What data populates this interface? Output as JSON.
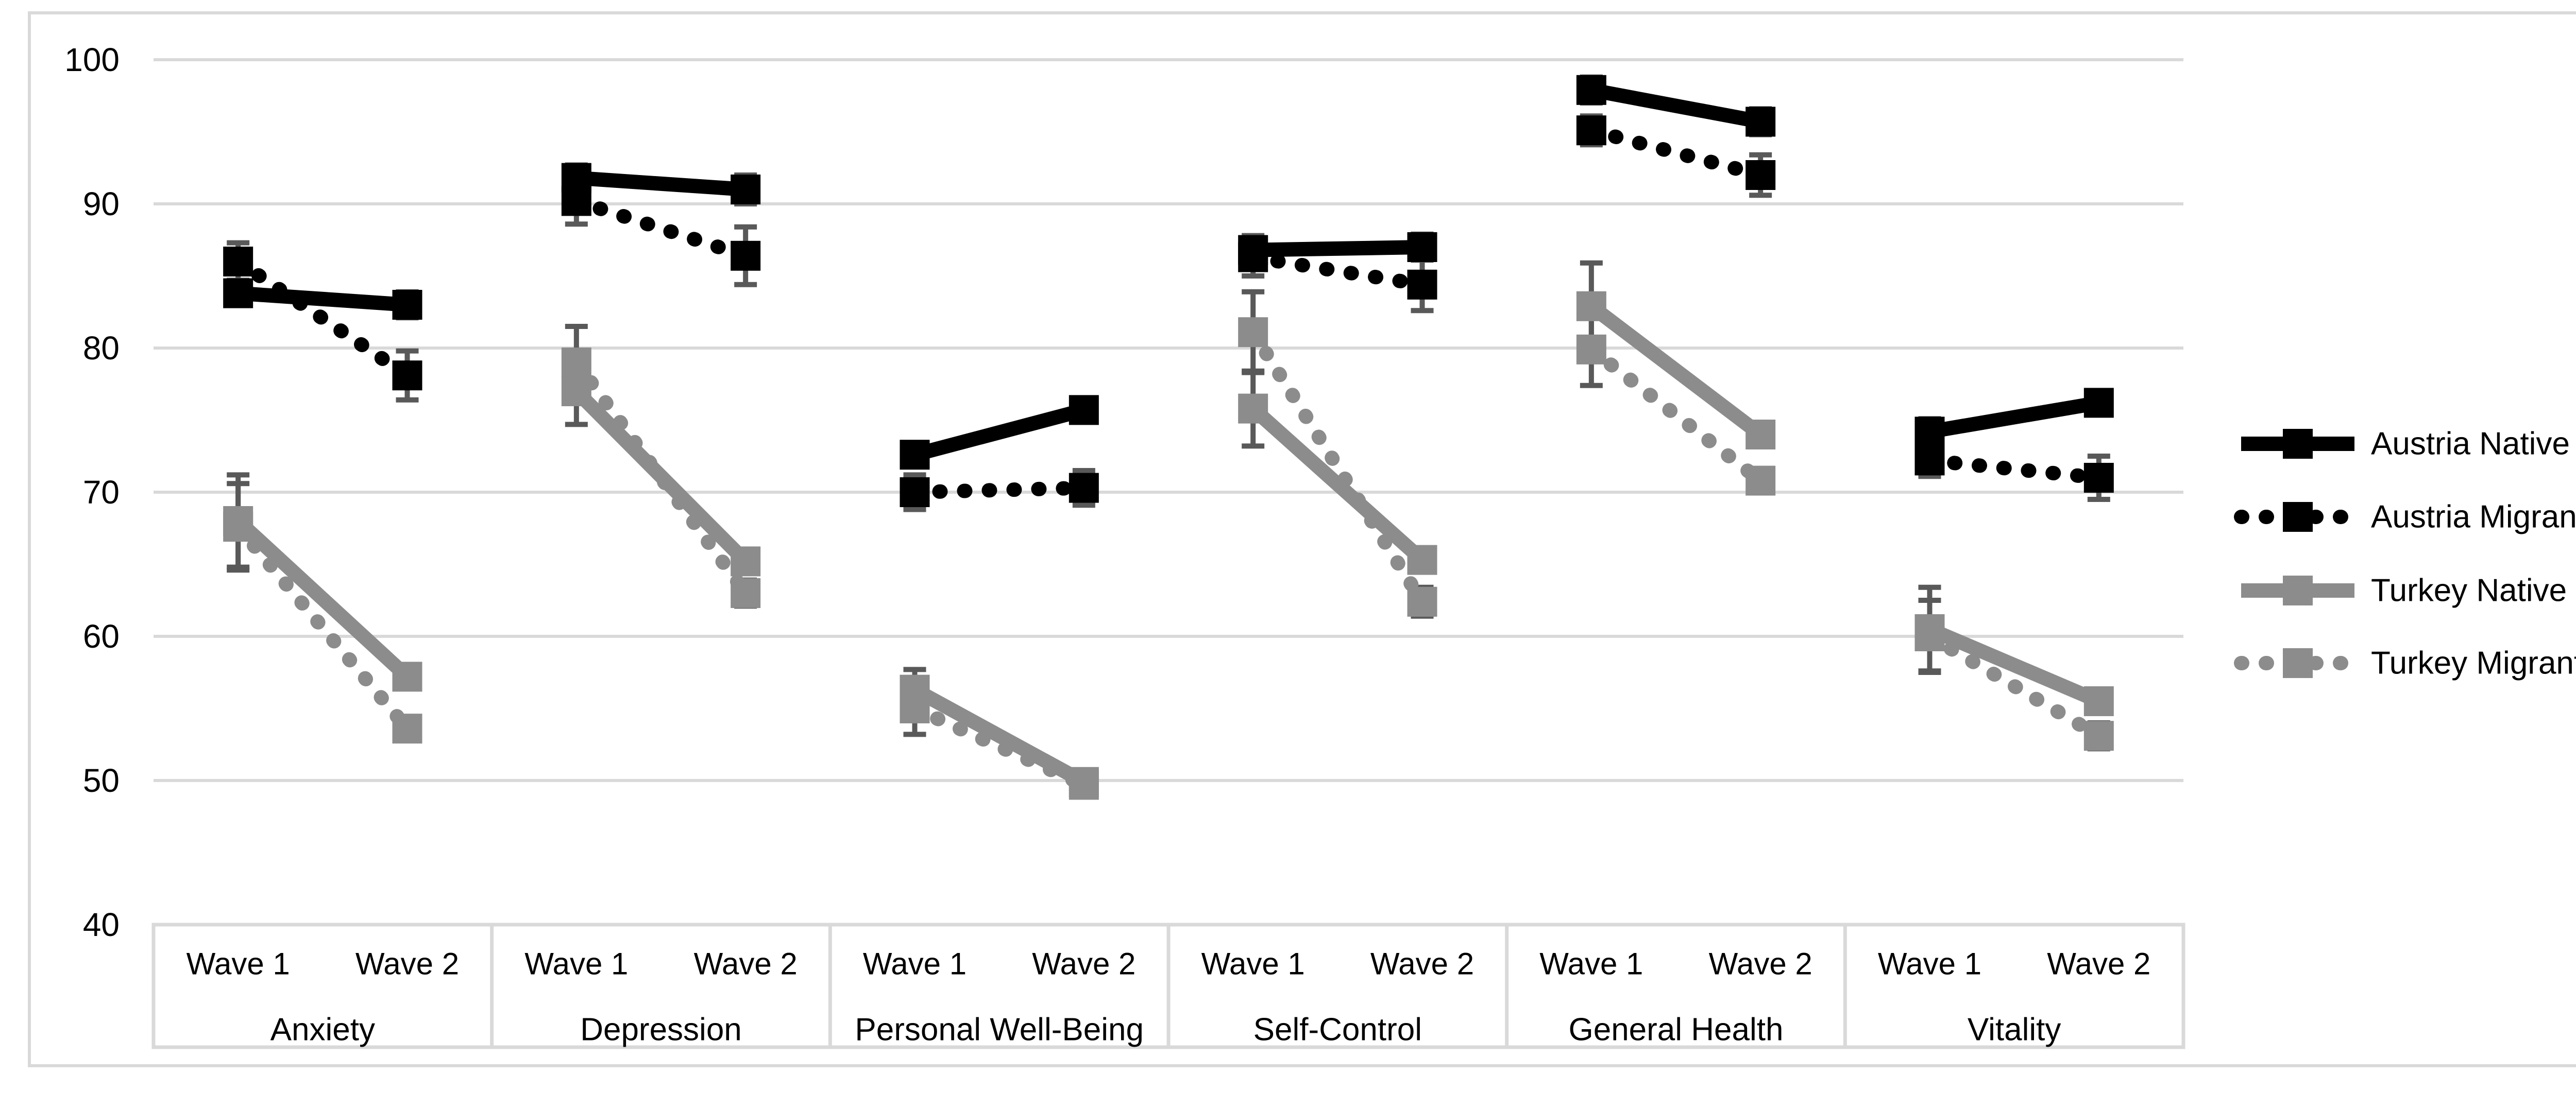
{
  "chart_data": {
    "type": "line",
    "title": "",
    "y_axis": {
      "label": "",
      "min": 40,
      "max": 100,
      "tick_interval": 10,
      "ticks": [
        100,
        90,
        80,
        70,
        60,
        50,
        40
      ]
    },
    "x_axis": {
      "wave_labels": [
        "Wave 1",
        "Wave 2"
      ],
      "categories": [
        "Anxiety",
        "Depression",
        "Personal Well-Being",
        "Self-Control",
        "General Health",
        "Vitality"
      ]
    },
    "grid": true,
    "legend_position": "right-middle",
    "marker": "square",
    "error_bars": true,
    "error_bar_color": "#595959",
    "grid_color": "#d9d9d9",
    "series": [
      {
        "name": "Austria Native",
        "color": "#000000",
        "line_style": "solid",
        "values": [
          [
            83.8,
            83.0
          ],
          [
            91.8,
            91.0
          ],
          [
            72.6,
            75.7
          ],
          [
            86.8,
            87.0
          ],
          [
            97.9,
            95.7
          ],
          [
            74.2,
            76.2
          ]
        ],
        "errors": [
          [
            0.7,
            0.9
          ],
          [
            0.9,
            1.0
          ],
          [
            0.6,
            0.6
          ],
          [
            1.0,
            0.9
          ],
          [
            0.9,
            0.9
          ],
          [
            0.9,
            0.8
          ]
        ]
      },
      {
        "name": "Austria Migrant",
        "color": "#000000",
        "line_style": "dotted",
        "values": [
          [
            86.0,
            78.1
          ],
          [
            90.2,
            86.4
          ],
          [
            70.0,
            70.3
          ],
          [
            86.3,
            84.4
          ],
          [
            95.1,
            92.0
          ],
          [
            72.2,
            71.0
          ]
        ],
        "errors": [
          [
            1.3,
            1.7
          ],
          [
            1.6,
            2.0
          ],
          [
            1.2,
            1.2
          ],
          [
            1.3,
            1.8
          ],
          [
            1.0,
            1.4
          ],
          [
            1.1,
            1.5
          ]
        ]
      },
      {
        "name": "Turkey Native",
        "color": "#8c8c8c",
        "line_style": "solid",
        "values": [
          [
            68.0,
            57.2
          ],
          [
            77.0,
            65.2
          ],
          [
            56.3,
            49.9
          ],
          [
            75.8,
            65.3
          ],
          [
            82.9,
            74.0
          ],
          [
            60.5,
            55.5
          ]
        ],
        "errors": [
          [
            3.2,
            0.6
          ],
          [
            2.3,
            0.7
          ],
          [
            1.4,
            0.4
          ],
          [
            2.6,
            0.8
          ],
          [
            3.0,
            0.8
          ],
          [
            2.9,
            0.6
          ]
        ]
      },
      {
        "name": "Turkey Migrant",
        "color": "#8c8c8c",
        "line_style": "dotted",
        "values": [
          [
            67.6,
            53.6
          ],
          [
            79.0,
            63.0
          ],
          [
            55.0,
            49.7
          ],
          [
            81.1,
            62.4
          ],
          [
            79.9,
            70.8
          ],
          [
            60.0,
            53.1
          ]
        ],
        "errors": [
          [
            3.0,
            0.8
          ],
          [
            2.5,
            0.9
          ],
          [
            1.8,
            0.4
          ],
          [
            2.8,
            1.0
          ],
          [
            2.5,
            0.7
          ],
          [
            2.5,
            0.9
          ]
        ]
      }
    ]
  }
}
